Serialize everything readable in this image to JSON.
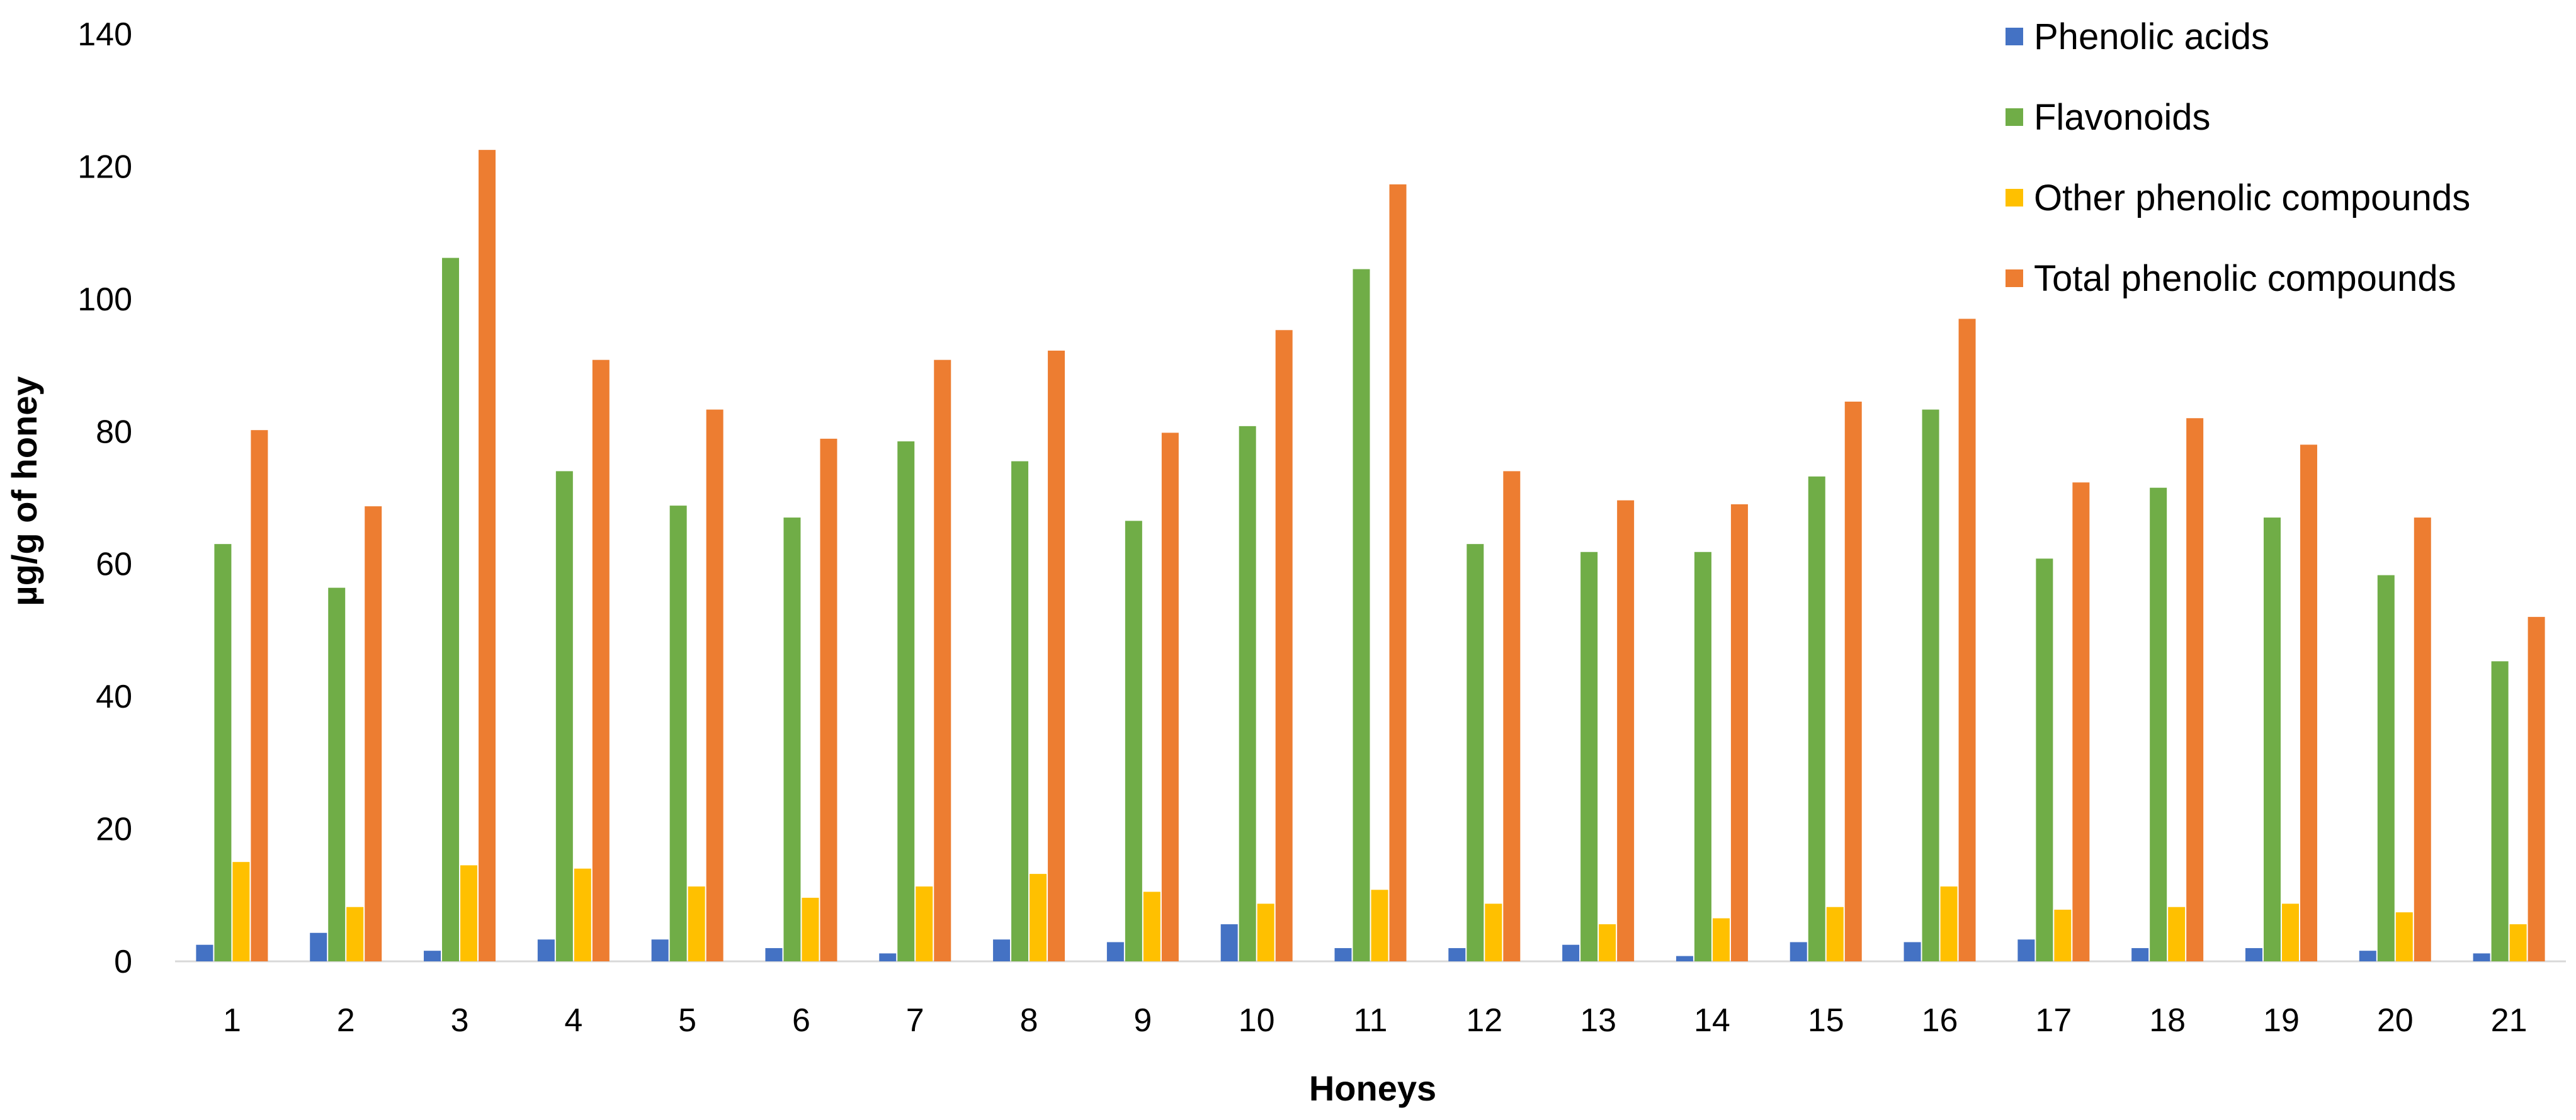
{
  "chart_data": {
    "type": "bar",
    "xlabel": "Honeys",
    "ylabel": "µg/g of honey",
    "ylim": [
      0,
      140
    ],
    "yticks": [
      0,
      20,
      40,
      60,
      80,
      100,
      120,
      140
    ],
    "grid": false,
    "legend_position": "top-right",
    "categories": [
      "1",
      "2",
      "3",
      "4",
      "5",
      "6",
      "7",
      "8",
      "9",
      "10",
      "11",
      "12",
      "13",
      "14",
      "15",
      "16",
      "17",
      "18",
      "19",
      "20",
      "21"
    ],
    "series": [
      {
        "name": "Phenolic acids",
        "color": "#4472C4",
        "values": [
          2.5,
          4.3,
          1.6,
          3.3,
          3.3,
          2.0,
          1.2,
          3.3,
          2.9,
          5.6,
          2.0,
          2.0,
          2.5,
          0.8,
          2.9,
          2.9,
          3.3,
          2.0,
          2.0,
          1.6,
          1.2
        ]
      },
      {
        "name": "Flavonoids",
        "color": "#70AD47",
        "values": [
          63.0,
          56.4,
          106.2,
          74.0,
          68.8,
          67.0,
          78.5,
          75.5,
          66.5,
          80.8,
          104.5,
          63.0,
          61.8,
          61.8,
          73.2,
          83.3,
          60.8,
          71.5,
          67.0,
          58.3,
          45.3
        ]
      },
      {
        "name": "Other phenolic compounds",
        "color": "#FFC000",
        "values": [
          15.0,
          8.2,
          14.5,
          14.0,
          11.3,
          9.6,
          11.3,
          13.2,
          10.5,
          8.7,
          10.8,
          8.7,
          5.6,
          6.5,
          8.2,
          11.3,
          7.8,
          8.2,
          8.7,
          7.4,
          5.6
        ]
      },
      {
        "name": "Total phenolic compounds",
        "color": "#ED7D31",
        "values": [
          80.2,
          68.7,
          122.5,
          90.8,
          83.3,
          78.9,
          90.8,
          92.2,
          79.8,
          95.3,
          117.3,
          74.0,
          69.6,
          69.0,
          84.5,
          97.0,
          72.3,
          82.0,
          78.0,
          67.0,
          52.0
        ]
      }
    ]
  }
}
